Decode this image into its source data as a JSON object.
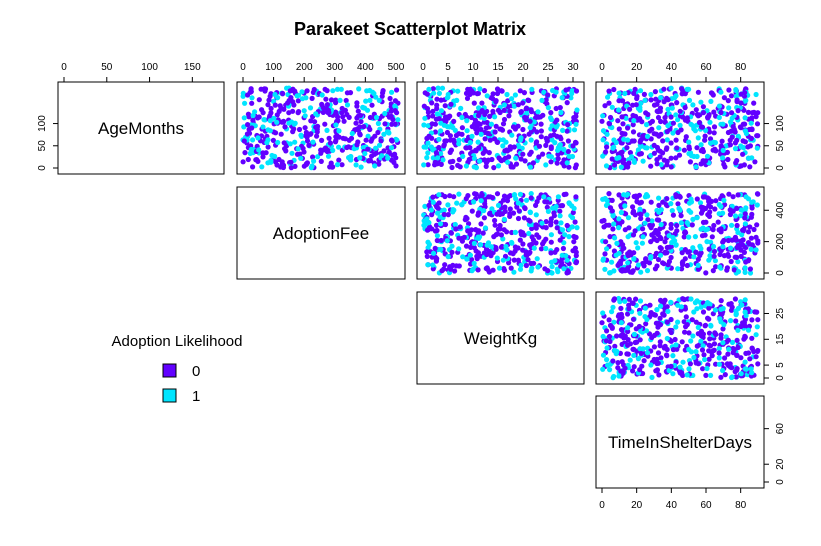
{
  "chart_data": {
    "type": "scatter",
    "title": "Parakeet Scatterplot Matrix",
    "variables": [
      "AgeMonths",
      "AdoptionFee",
      "WeightKg",
      "TimeInShelterDays"
    ],
    "ranges": {
      "AgeMonths": [
        0,
        180
      ],
      "AdoptionFee": [
        0,
        510
      ],
      "WeightKg": [
        0,
        31
      ],
      "TimeInShelterDays": [
        0,
        90
      ]
    },
    "ticks": {
      "AgeMonths": [
        0,
        50,
        100,
        150
      ],
      "AdoptionFee": [
        0,
        100,
        200,
        300,
        400,
        500
      ],
      "WeightKg": [
        0,
        5,
        10,
        15,
        20,
        25,
        30
      ],
      "TimeInShelterDays": [
        0,
        20,
        40,
        60,
        80
      ]
    },
    "row_ticks": {
      "AgeMonths": [
        0,
        50,
        100
      ],
      "AdoptionFee": [
        0,
        200,
        400
      ],
      "WeightKg": [
        0,
        5,
        15,
        25
      ],
      "TimeInShelterDays": [
        0,
        20,
        60
      ]
    },
    "legend": {
      "title": "Adoption Likelihood",
      "entries": [
        {
          "label": "0",
          "color": "#6200FF"
        },
        {
          "label": "1",
          "color": "#00E5FF"
        }
      ]
    },
    "grid": false,
    "point_count": 500,
    "class1_fraction": 0.32,
    "data_note_seed": 7
  }
}
